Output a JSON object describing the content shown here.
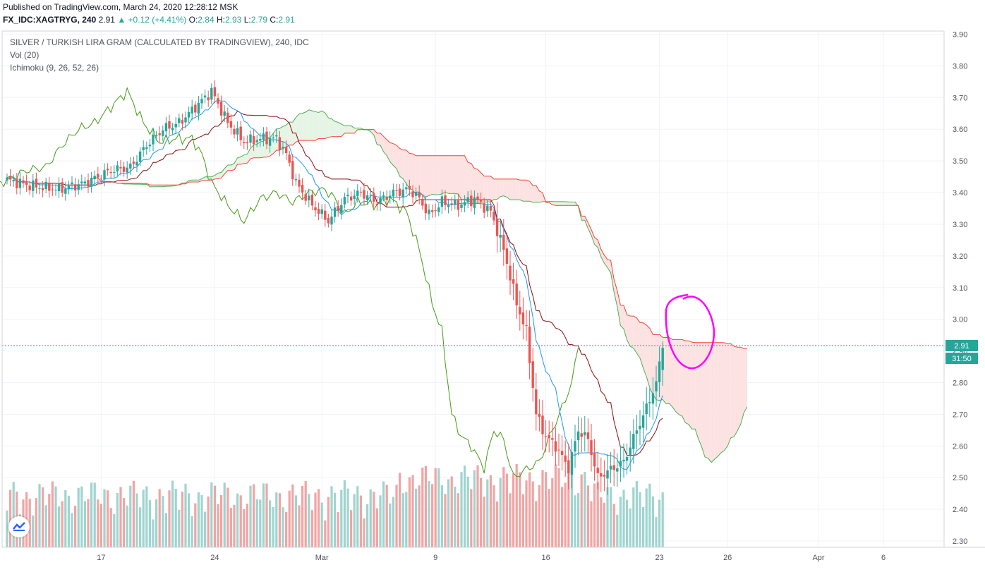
{
  "header": {
    "published": "Published on TradingView.com, March 24, 2020 12:28:12 MSK",
    "symbol_line": "FX_IDC:XAGTRYG, 240",
    "last": "2.91",
    "change": "+0.12 (+4.41%)",
    "ohlc": {
      "o_label": "O:",
      "o": "2.84",
      "h_label": "H:",
      "h": "2.93",
      "l_label": "L:",
      "l": "2.79",
      "c_label": "C:",
      "c": "2.91"
    }
  },
  "legend": {
    "title": "SILVER / TURKISH LIRA GRAM (CALCULATED BY TRADINGVIEW), 240, IDC",
    "vol": "Vol (20)",
    "ichimoku": "Ichimoku (9, 26, 52, 26)"
  },
  "price_axis": {
    "labels": [
      "3.90",
      "3.80",
      "3.70",
      "3.60",
      "3.50",
      "3.40",
      "3.30",
      "3.20",
      "3.10",
      "3.00",
      "2.90",
      "2.80",
      "2.70",
      "2.60",
      "2.50",
      "2.40",
      "2.30"
    ],
    "last_price_label": "2.91",
    "countdown_label": "31:50"
  },
  "time_axis": {
    "labels": [
      "17",
      "24",
      "Mar",
      "9",
      "16",
      "23",
      "26",
      "Apr",
      "6"
    ]
  },
  "colors": {
    "up": "#26a69a",
    "down": "#ef5350",
    "vol_up": "#9fd4cf",
    "vol_down": "#f0a5a4",
    "tenkan": "#2196f3",
    "kijun": "#880e0e",
    "chikou": "#459915",
    "span_a": "#4caf50",
    "span_b": "#f44336",
    "cloud_up": "#e6f4e6",
    "cloud_down": "#fde2e2",
    "annotation": "#ff00ff",
    "last_price_line": "#26a69a"
  },
  "chart_data": {
    "type": "candlestick",
    "title": "SILVER / TURKISH LIRA GRAM (CALCULATED BY TRADINGVIEW), 240, IDC",
    "interval": "240",
    "ylim": [
      2.28,
      3.91
    ],
    "x_ticks": [
      "17",
      "24",
      "Mar",
      "9",
      "16",
      "23",
      "26",
      "Apr",
      "6"
    ],
    "last_price": 2.91,
    "ohlc_last": {
      "open": 2.84,
      "high": 2.93,
      "low": 2.79,
      "close": 2.91,
      "change": 0.12,
      "change_pct": 4.41
    },
    "close_anchors": [
      [
        0,
        3.44
      ],
      [
        8,
        3.42
      ],
      [
        16,
        3.41
      ],
      [
        24,
        3.43
      ],
      [
        32,
        3.47
      ],
      [
        38,
        3.48
      ],
      [
        43,
        3.55
      ],
      [
        48,
        3.6
      ],
      [
        53,
        3.62
      ],
      [
        58,
        3.67
      ],
      [
        63,
        3.72
      ],
      [
        68,
        3.62
      ],
      [
        73,
        3.56
      ],
      [
        78,
        3.57
      ],
      [
        83,
        3.57
      ],
      [
        86,
        3.52
      ],
      [
        89,
        3.43
      ],
      [
        94,
        3.36
      ],
      [
        99,
        3.31
      ],
      [
        104,
        3.38
      ],
      [
        109,
        3.4
      ],
      [
        114,
        3.37
      ],
      [
        119,
        3.4
      ],
      [
        124,
        3.41
      ],
      [
        127,
        3.38
      ],
      [
        130,
        3.33
      ],
      [
        134,
        3.37
      ],
      [
        139,
        3.36
      ],
      [
        144,
        3.38
      ],
      [
        149,
        3.34
      ],
      [
        153,
        3.22
      ],
      [
        157,
        3.05
      ],
      [
        160,
        2.96
      ],
      [
        163,
        2.7
      ],
      [
        166,
        2.63
      ],
      [
        169,
        2.6
      ],
      [
        173,
        2.53
      ],
      [
        176,
        2.65
      ],
      [
        179,
        2.62
      ],
      [
        182,
        2.5
      ],
      [
        185,
        2.52
      ],
      [
        190,
        2.55
      ],
      [
        194,
        2.65
      ],
      [
        197,
        2.72
      ],
      [
        200,
        2.8
      ],
      [
        202,
        2.91
      ]
    ],
    "volume_note": "Vol (20) histogram, relative heights, coloured by candle direction"
  }
}
